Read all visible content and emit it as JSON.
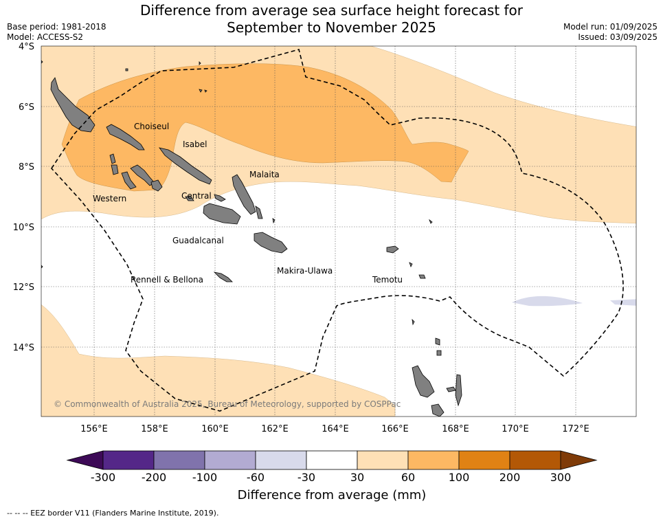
{
  "title": {
    "line1": "Difference from average sea surface height forecast for",
    "line2": "September to November 2025"
  },
  "meta": {
    "base_period": "Base period: 1981-2018",
    "model": "Model: ACCESS-S2",
    "model_run": "Model run: 01/09/2025",
    "issued": "Issued: 03/09/2025"
  },
  "map": {
    "lat_labels": [
      "4°S",
      "6°S",
      "8°S",
      "10°S",
      "12°S",
      "14°S"
    ],
    "lon_labels": [
      "156°E",
      "158°E",
      "160°E",
      "162°E",
      "164°E",
      "166°E",
      "168°E",
      "170°E",
      "172°E"
    ],
    "province_labels": {
      "choiseul": "Choiseul",
      "isabel": "Isabel",
      "malaita": "Malaita",
      "western": "Western",
      "central": "Central",
      "guadalcanal": "Guadalcanal",
      "makira_ulawa": "Makira-Ulawa",
      "rennell_bellona": "Rennell & Bellona",
      "temotu": "Temotu"
    },
    "copyright": "© Commonwealth of Australia 2025, Bureau of Meteorology, supported by COSPPac"
  },
  "colorbar": {
    "ticks": [
      "-300",
      "-200",
      "-100",
      "-60",
      "-30",
      "30",
      "60",
      "100",
      "200",
      "300"
    ],
    "colors": [
      "#3d0a57",
      "#542788",
      "#8073ac",
      "#b2abd2",
      "#d8daeb",
      "#ffffff",
      "#fee0b6",
      "#fdb863",
      "#e08214",
      "#b35806",
      "#7f3b08"
    ],
    "label": "Difference from average (mm)"
  },
  "footer": {
    "legend": "--  --  -- EEZ border V11 (Flanders Marine Institute, 2019)."
  }
}
